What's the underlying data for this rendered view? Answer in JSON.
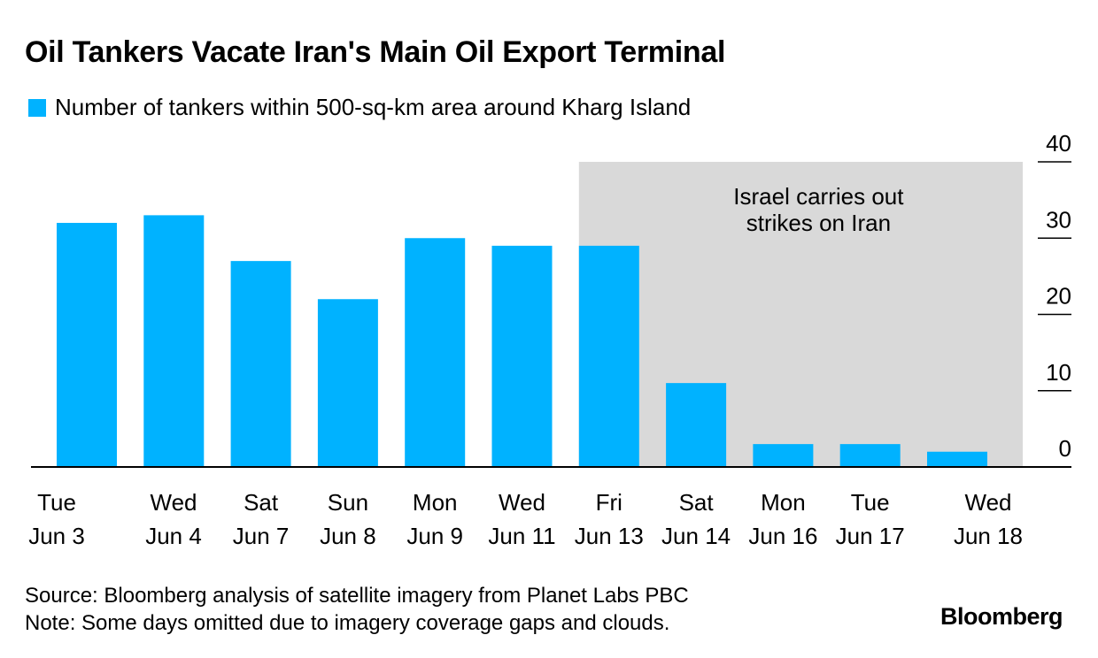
{
  "colors": {
    "bar": "#00b2ff",
    "shade": "#d9d9d9",
    "axis": "#000000"
  },
  "chart_data": {
    "type": "bar",
    "title": "Oil Tankers Vacate Iran's Main Oil Export Terminal",
    "categories": [
      [
        "Tue",
        "Jun 3"
      ],
      [
        "Wed",
        "Jun 4"
      ],
      [
        "Sat",
        "Jun 7"
      ],
      [
        "Sun",
        "Jun 8"
      ],
      [
        "Mon",
        "Jun 9"
      ],
      [
        "Wed",
        "Jun 11"
      ],
      [
        "Fri",
        "Jun 13"
      ],
      [
        "Sat",
        "Jun 14"
      ],
      [
        "Mon",
        "Jun 16"
      ],
      [
        "Tue",
        "Jun 17"
      ],
      [
        "Wed",
        "Jun 18"
      ]
    ],
    "series": [
      {
        "name": "Number of tankers within 500-sq-km area around Kharg Island",
        "values": [
          32,
          33,
          27,
          22,
          30,
          29,
          29,
          11,
          3,
          3,
          2
        ]
      }
    ],
    "ylim": [
      0,
      40
    ],
    "yticks": [
      0,
      10,
      20,
      30,
      40
    ],
    "y_axis_side": "right",
    "annotations": [
      {
        "text_lines": [
          "Israel carries out",
          "strikes on Iran"
        ],
        "shaded_from_category": 6,
        "shaded_to": "end"
      }
    ]
  },
  "footer": {
    "source": "Source: Bloomberg analysis of satellite imagery from Planet Labs PBC",
    "note": "Note: Some days omitted due to imagery coverage gaps and clouds."
  },
  "brand": "Bloomberg"
}
